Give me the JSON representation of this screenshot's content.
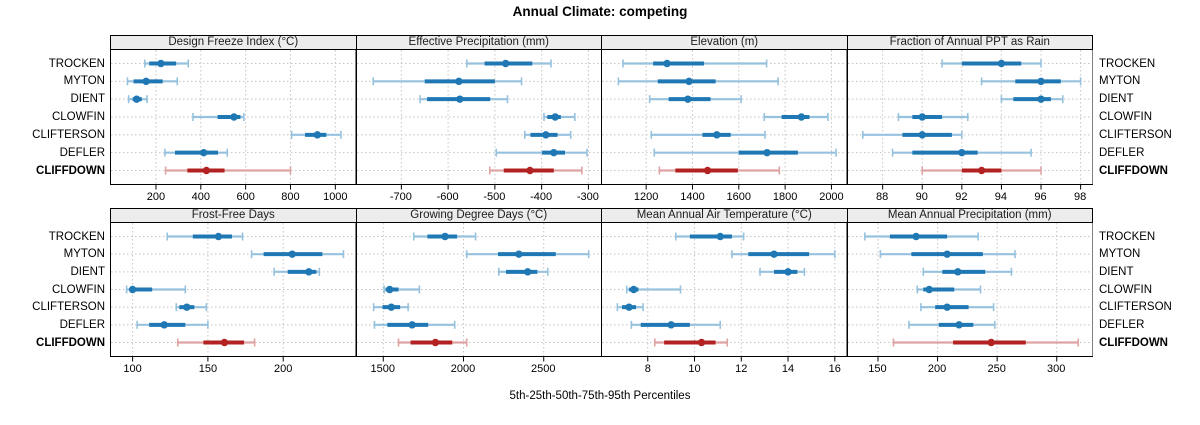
{
  "title": "Annual Climate: competing",
  "xlabel": "5th-25th-50th-75th-95th Percentiles",
  "percentile_levels": [
    5,
    25,
    50,
    75,
    95
  ],
  "stations": [
    {
      "name": "TROCKEN",
      "bold": false
    },
    {
      "name": "MYTON",
      "bold": false
    },
    {
      "name": "DIENT",
      "bold": false
    },
    {
      "name": "CLOWFIN",
      "bold": false
    },
    {
      "name": "CLIFTERSON",
      "bold": false
    },
    {
      "name": "DEFLER",
      "bold": false
    },
    {
      "name": "CLIFFDOWN",
      "bold": true
    }
  ],
  "highlight_station": "CLIFFDOWN",
  "colors": {
    "blue_dark": "#1f78b4",
    "blue_light": "#96c2de",
    "red_dark": "#b22222",
    "red_light": "#dfa3a3",
    "header_bg": "#ececec",
    "border": "#000000",
    "grid": "#c4c4c4"
  },
  "chart_data": [
    {
      "type": "dotplot",
      "title": "Design Freeze Index (°C)",
      "row": 0,
      "col": 0,
      "xlim": [
        -5,
        1090
      ],
      "ticks": [
        200,
        400,
        600,
        800,
        1000
      ],
      "tick_labels": [
        "200",
        "400",
        "600",
        "800",
        "1000"
      ],
      "series": [
        {
          "station": "TROCKEN",
          "p": [
            150,
            170,
            222,
            290,
            344
          ]
        },
        {
          "station": "MYTON",
          "p": [
            73,
            100,
            156,
            230,
            295
          ]
        },
        {
          "station": "DIENT",
          "p": [
            78,
            96,
            114,
            137,
            160
          ]
        },
        {
          "station": "CLOWFIN",
          "p": [
            365,
            475,
            548,
            577,
            592
          ]
        },
        {
          "station": "CLIFTERSON",
          "p": [
            805,
            865,
            920,
            960,
            1025
          ]
        },
        {
          "station": "DEFLER",
          "p": [
            240,
            285,
            413,
            477,
            518
          ]
        },
        {
          "station": "CLIFFDOWN",
          "p": [
            243,
            340,
            425,
            506,
            800
          ]
        }
      ]
    },
    {
      "type": "dotplot",
      "title": "Effective Precipitation (mm)",
      "row": 0,
      "col": 1,
      "xlim": [
        -797,
        -272
      ],
      "ticks": [
        -700,
        -600,
        -500,
        -400,
        -300
      ],
      "tick_labels": [
        "-700",
        "-600",
        "-500",
        "-400",
        "-300"
      ],
      "series": [
        {
          "station": "TROCKEN",
          "p": [
            -560,
            -522,
            -477,
            -420,
            -380
          ]
        },
        {
          "station": "MYTON",
          "p": [
            -760,
            -650,
            -577,
            -500,
            -443
          ]
        },
        {
          "station": "DIENT",
          "p": [
            -660,
            -645,
            -575,
            -510,
            -473
          ]
        },
        {
          "station": "CLOWFIN",
          "p": [
            -395,
            -388,
            -371,
            -359,
            -329
          ]
        },
        {
          "station": "CLIFTERSON",
          "p": [
            -436,
            -424,
            -391,
            -366,
            -338
          ]
        },
        {
          "station": "DEFLER",
          "p": [
            -497,
            -399,
            -374,
            -350,
            -303
          ]
        },
        {
          "station": "CLIFFDOWN",
          "p": [
            -511,
            -481,
            -425,
            -374,
            -314
          ]
        }
      ]
    },
    {
      "type": "dotplot",
      "title": "Elevation (m)",
      "row": 0,
      "col": 2,
      "xlim": [
        1005,
        2065
      ],
      "ticks": [
        1200,
        1400,
        1600,
        1800,
        2000
      ],
      "tick_labels": [
        "1200",
        "1400",
        "1600",
        "1800",
        "2000"
      ],
      "series": [
        {
          "station": "TROCKEN",
          "p": [
            1100,
            1230,
            1290,
            1450,
            1720
          ]
        },
        {
          "station": "MYTON",
          "p": [
            1080,
            1250,
            1385,
            1500,
            1770
          ]
        },
        {
          "station": "DIENT",
          "p": [
            1215,
            1297,
            1380,
            1478,
            1610
          ]
        },
        {
          "station": "CLOWFIN",
          "p": [
            1710,
            1785,
            1870,
            1905,
            1985
          ]
        },
        {
          "station": "CLIFTERSON",
          "p": [
            1222,
            1443,
            1505,
            1565,
            1713
          ]
        },
        {
          "station": "DEFLER",
          "p": [
            1235,
            1600,
            1722,
            1855,
            2020
          ]
        },
        {
          "station": "CLIFFDOWN",
          "p": [
            1257,
            1326,
            1465,
            1596,
            1775
          ]
        }
      ]
    },
    {
      "type": "dotplot",
      "title": "Fraction of Annual PPT as Rain",
      "row": 0,
      "col": 3,
      "xlim": [
        86.2,
        98.6
      ],
      "ticks": [
        88,
        90,
        92,
        94,
        96,
        98
      ],
      "tick_labels": [
        "88",
        "90",
        "92",
        "94",
        "96",
        "98"
      ],
      "series": [
        {
          "station": "TROCKEN",
          "p": [
            91,
            92,
            94,
            95,
            96
          ]
        },
        {
          "station": "MYTON",
          "p": [
            93,
            94.7,
            96,
            97,
            98
          ]
        },
        {
          "station": "DIENT",
          "p": [
            94,
            94.6,
            96,
            96.5,
            97.1
          ]
        },
        {
          "station": "CLOWFIN",
          "p": [
            88.8,
            89.5,
            90,
            91,
            92.3
          ]
        },
        {
          "station": "CLIFTERSON",
          "p": [
            87,
            89,
            90,
            91.5,
            92
          ]
        },
        {
          "station": "DEFLER",
          "p": [
            88.5,
            89.5,
            92,
            92.8,
            95.5
          ]
        },
        {
          "station": "CLIFFDOWN",
          "p": [
            90,
            92,
            93,
            94,
            96
          ]
        }
      ]
    },
    {
      "type": "dotplot",
      "title": "Frost-Free Days",
      "row": 1,
      "col": 0,
      "xlim": [
        85,
        248
      ],
      "ticks": [
        100,
        150,
        200
      ],
      "tick_labels": [
        "100",
        "150",
        "200"
      ],
      "series": [
        {
          "station": "TROCKEN",
          "p": [
            123,
            140,
            157,
            166,
            173
          ]
        },
        {
          "station": "MYTON",
          "p": [
            179,
            187,
            206,
            226,
            240
          ]
        },
        {
          "station": "DIENT",
          "p": [
            194,
            203,
            217,
            222,
            224
          ]
        },
        {
          "station": "CLOWFIN",
          "p": [
            96,
            98,
            100,
            113,
            135
          ]
        },
        {
          "station": "CLIFTERSON",
          "p": [
            129,
            131,
            136,
            141,
            149
          ]
        },
        {
          "station": "DEFLER",
          "p": [
            103,
            111,
            121,
            135,
            150
          ]
        },
        {
          "station": "CLIFFDOWN",
          "p": [
            130,
            147,
            161,
            174,
            181
          ]
        }
      ]
    },
    {
      "type": "dotplot",
      "title": "Growing Degree Days (°C)",
      "row": 1,
      "col": 1,
      "xlim": [
        1330,
        2860
      ],
      "ticks": [
        1500,
        2000,
        2500
      ],
      "tick_labels": [
        "1500",
        "2000",
        "2500"
      ],
      "series": [
        {
          "station": "TROCKEN",
          "p": [
            1690,
            1775,
            1885,
            1960,
            2075
          ]
        },
        {
          "station": "MYTON",
          "p": [
            2020,
            2215,
            2345,
            2575,
            2780
          ]
        },
        {
          "station": "DIENT",
          "p": [
            2220,
            2265,
            2400,
            2460,
            2525
          ]
        },
        {
          "station": "CLOWFIN",
          "p": [
            1505,
            1515,
            1540,
            1595,
            1725
          ]
        },
        {
          "station": "CLIFTERSON",
          "p": [
            1440,
            1495,
            1550,
            1605,
            1655
          ]
        },
        {
          "station": "DEFLER",
          "p": [
            1445,
            1525,
            1680,
            1780,
            1945
          ]
        },
        {
          "station": "CLIFFDOWN",
          "p": [
            1595,
            1670,
            1825,
            1930,
            2020
          ]
        }
      ]
    },
    {
      "type": "dotplot",
      "title": "Mean Annual Air Temperature (°C)",
      "row": 1,
      "col": 2,
      "xlim": [
        6.0,
        16.5
      ],
      "ticks": [
        8,
        10,
        12,
        14,
        16
      ],
      "tick_labels": [
        "8",
        "10",
        "12",
        "14",
        "16"
      ],
      "series": [
        {
          "station": "TROCKEN",
          "p": [
            9.2,
            9.8,
            11.1,
            11.6,
            12.1
          ]
        },
        {
          "station": "MYTON",
          "p": [
            11.6,
            12.3,
            13.4,
            14.9,
            16.0
          ]
        },
        {
          "station": "DIENT",
          "p": [
            12.8,
            13.4,
            14.0,
            14.4,
            14.7
          ]
        },
        {
          "station": "CLOWFIN",
          "p": [
            7.1,
            7.2,
            7.4,
            7.6,
            9.4
          ]
        },
        {
          "station": "CLIFTERSON",
          "p": [
            6.7,
            6.9,
            7.2,
            7.5,
            7.8
          ]
        },
        {
          "station": "DEFLER",
          "p": [
            7.3,
            7.7,
            9.0,
            9.8,
            11.1
          ]
        },
        {
          "station": "CLIFFDOWN",
          "p": [
            8.3,
            8.7,
            10.3,
            10.9,
            11.4
          ]
        }
      ]
    },
    {
      "type": "dotplot",
      "title": "Mean Annual Precipitation (mm)",
      "row": 1,
      "col": 3,
      "xlim": [
        124,
        330
      ],
      "ticks": [
        150,
        200,
        250,
        300
      ],
      "tick_labels": [
        "150",
        "200",
        "250",
        "300"
      ],
      "series": [
        {
          "station": "TROCKEN",
          "p": [
            139,
            160,
            182,
            208,
            234
          ]
        },
        {
          "station": "MYTON",
          "p": [
            152,
            178,
            208,
            238,
            265
          ]
        },
        {
          "station": "DIENT",
          "p": [
            188,
            204,
            217,
            240,
            262
          ]
        },
        {
          "station": "CLOWFIN",
          "p": [
            183,
            188,
            193,
            214,
            236
          ]
        },
        {
          "station": "CLIFTERSON",
          "p": [
            186,
            198,
            208,
            226,
            247
          ]
        },
        {
          "station": "DEFLER",
          "p": [
            176,
            201,
            218,
            230,
            248
          ]
        },
        {
          "station": "CLIFFDOWN",
          "p": [
            163,
            213,
            245,
            274,
            318
          ]
        }
      ]
    }
  ]
}
